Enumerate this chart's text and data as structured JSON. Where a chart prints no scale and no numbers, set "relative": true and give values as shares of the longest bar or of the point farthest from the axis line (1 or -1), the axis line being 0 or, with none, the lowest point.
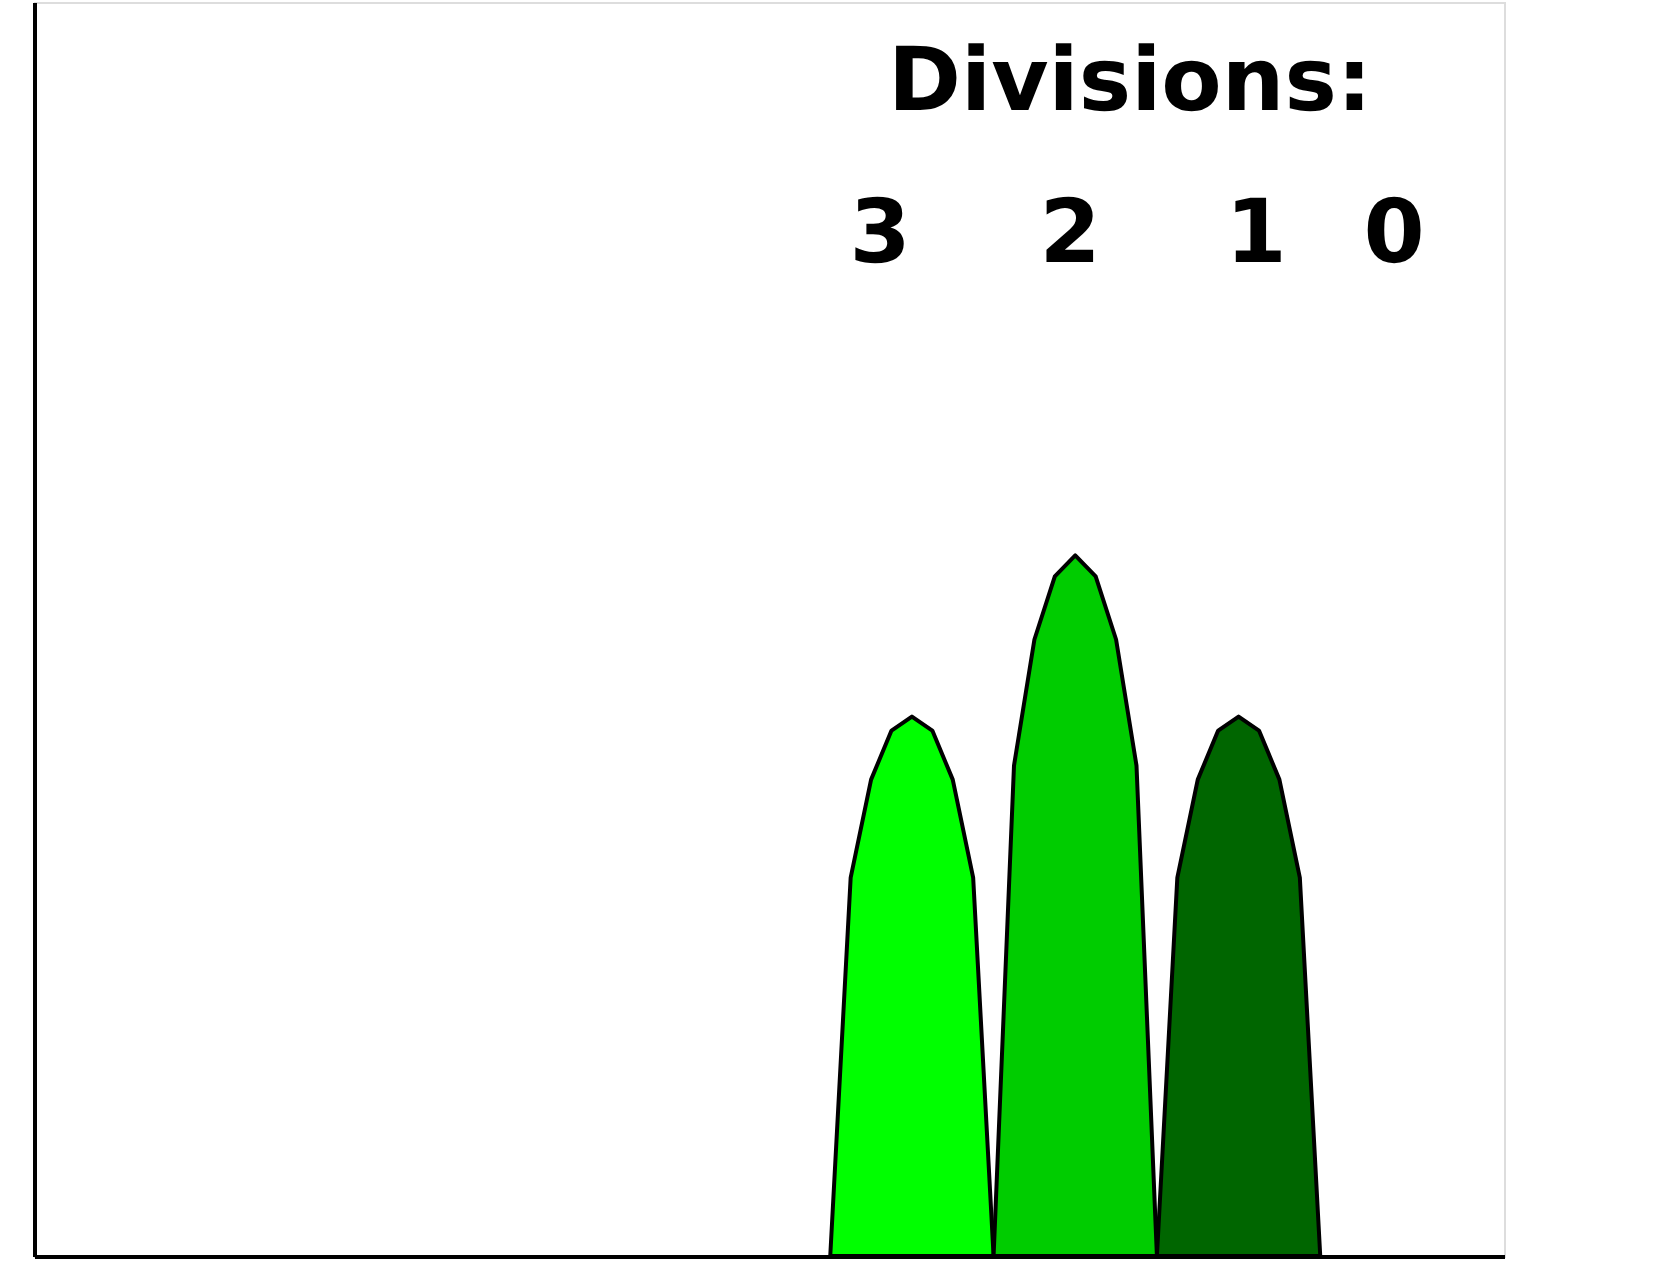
{
  "chart_data": {
    "type": "area",
    "relative": true,
    "tick_labels": false,
    "grid": false,
    "categories": [
      null,
      null,
      null,
      null,
      null,
      null,
      null,
      null,
      null,
      null,
      null,
      null,
      null,
      null,
      null,
      null,
      null,
      null,
      null,
      null,
      null,
      null,
      null,
      null,
      null,
      null,
      null,
      null,
      null,
      null,
      null,
      null,
      null,
      null,
      null,
      null,
      null,
      null,
      null,
      null,
      null,
      null,
      null,
      null,
      null,
      null,
      null,
      null,
      null,
      null,
      null,
      null,
      null,
      null,
      null,
      null,
      null,
      null,
      null,
      null,
      null,
      null,
      null,
      null,
      null,
      null,
      null,
      null,
      null,
      null,
      null,
      null,
      null
    ],
    "annotations": [
      "Divisions:",
      "3",
      "2",
      "1",
      "0"
    ],
    "series": [
      {
        "color": "#00ff00",
        "values": [
          null,
          null,
          null,
          null,
          null,
          null,
          null,
          null,
          null,
          null,
          null,
          null,
          null,
          null,
          null,
          null,
          null,
          null,
          null,
          null,
          null,
          null,
          null,
          null,
          null,
          null,
          null,
          null,
          null,
          null,
          null,
          null,
          null,
          null,
          null,
          null,
          null,
          null,
          null,
          0,
          0.54,
          0.68,
          0.75,
          0.77,
          0.75,
          0.68,
          0.54,
          0,
          null,
          null,
          null,
          null,
          null,
          null,
          null,
          null,
          null,
          null,
          null,
          null,
          null,
          null,
          null,
          null,
          null,
          null,
          null,
          null,
          null,
          null,
          null,
          null,
          null
        ]
      },
      {
        "color": "#00cc00",
        "values": [
          null,
          null,
          null,
          null,
          null,
          null,
          null,
          null,
          null,
          null,
          null,
          null,
          null,
          null,
          null,
          null,
          null,
          null,
          null,
          null,
          null,
          null,
          null,
          null,
          null,
          null,
          null,
          null,
          null,
          null,
          null,
          null,
          null,
          null,
          null,
          null,
          null,
          null,
          null,
          null,
          null,
          null,
          null,
          null,
          null,
          null,
          null,
          0,
          0.7,
          0.88,
          0.97,
          1,
          0.97,
          0.88,
          0.7,
          0,
          null,
          null,
          null,
          null,
          null,
          null,
          null,
          null,
          null,
          null,
          null,
          null,
          null,
          null,
          null,
          null,
          null
        ]
      },
      {
        "color": "#006600",
        "values": [
          null,
          null,
          null,
          null,
          null,
          null,
          null,
          null,
          null,
          null,
          null,
          null,
          null,
          null,
          null,
          null,
          null,
          null,
          null,
          null,
          null,
          null,
          null,
          null,
          null,
          null,
          null,
          null,
          null,
          null,
          null,
          null,
          null,
          null,
          null,
          null,
          null,
          null,
          null,
          null,
          null,
          null,
          null,
          null,
          null,
          null,
          null,
          null,
          null,
          null,
          null,
          null,
          null,
          null,
          null,
          0,
          0.54,
          0.68,
          0.75,
          0.77,
          0.75,
          0.68,
          0.54,
          0,
          null,
          null,
          null,
          null,
          null,
          null,
          null,
          null,
          null
        ]
      }
    ]
  }
}
